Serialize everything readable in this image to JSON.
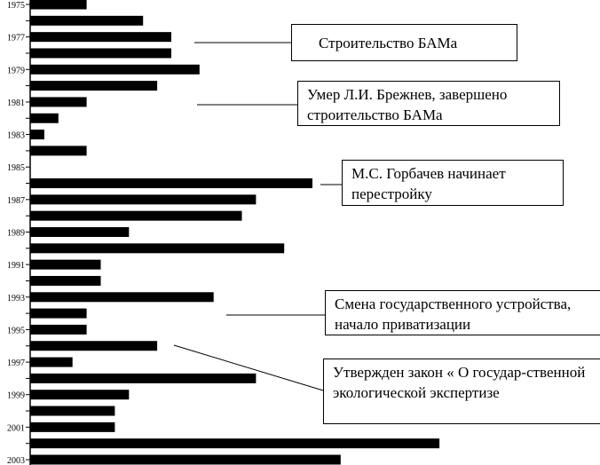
{
  "chart_data": {
    "type": "bar",
    "orientation": "horizontal",
    "title": "",
    "xlabel": "",
    "ylabel": "",
    "categories": [
      "1975",
      "1976",
      "1977",
      "1978",
      "1979",
      "1980",
      "1981",
      "1982",
      "1983",
      "1984",
      "1985",
      "1986",
      "1987",
      "1988",
      "1989",
      "1990",
      "1991",
      "1992",
      "1993",
      "1994",
      "1995",
      "1996",
      "1997",
      "1998",
      "1999",
      "2000",
      "2001",
      "2002",
      "2003"
    ],
    "tick_labels": [
      "1975",
      "1977",
      "1979",
      "1981",
      "1983",
      "1985",
      "1987",
      "1989",
      "1991",
      "1993",
      "1995",
      "1997",
      "1999",
      "2001",
      "2003"
    ],
    "values": [
      4,
      8,
      10,
      10,
      12,
      9,
      4,
      2,
      1,
      4,
      0,
      20,
      16,
      15,
      7,
      18,
      5,
      5,
      13,
      4,
      4,
      9,
      3,
      16,
      7,
      6,
      6,
      29,
      22
    ],
    "xlim": [
      0,
      40
    ],
    "grid": false,
    "bar_color": "#000000",
    "annotations": [
      {
        "text": "Строительство  БАМа",
        "year": "1977"
      },
      {
        "text": "Умер Л.И. Брежнев, завершено строительство  БАМа",
        "year": "1981"
      },
      {
        "text": "М.С. Горбачев начинает перестройку",
        "year": "1986"
      },
      {
        "text": "Смена государственного устройства, начало приватизации",
        "year": "1994"
      },
      {
        "text": "Утвержден закон « О государ-ственной экологической экспертизе",
        "year": "1996"
      }
    ]
  }
}
